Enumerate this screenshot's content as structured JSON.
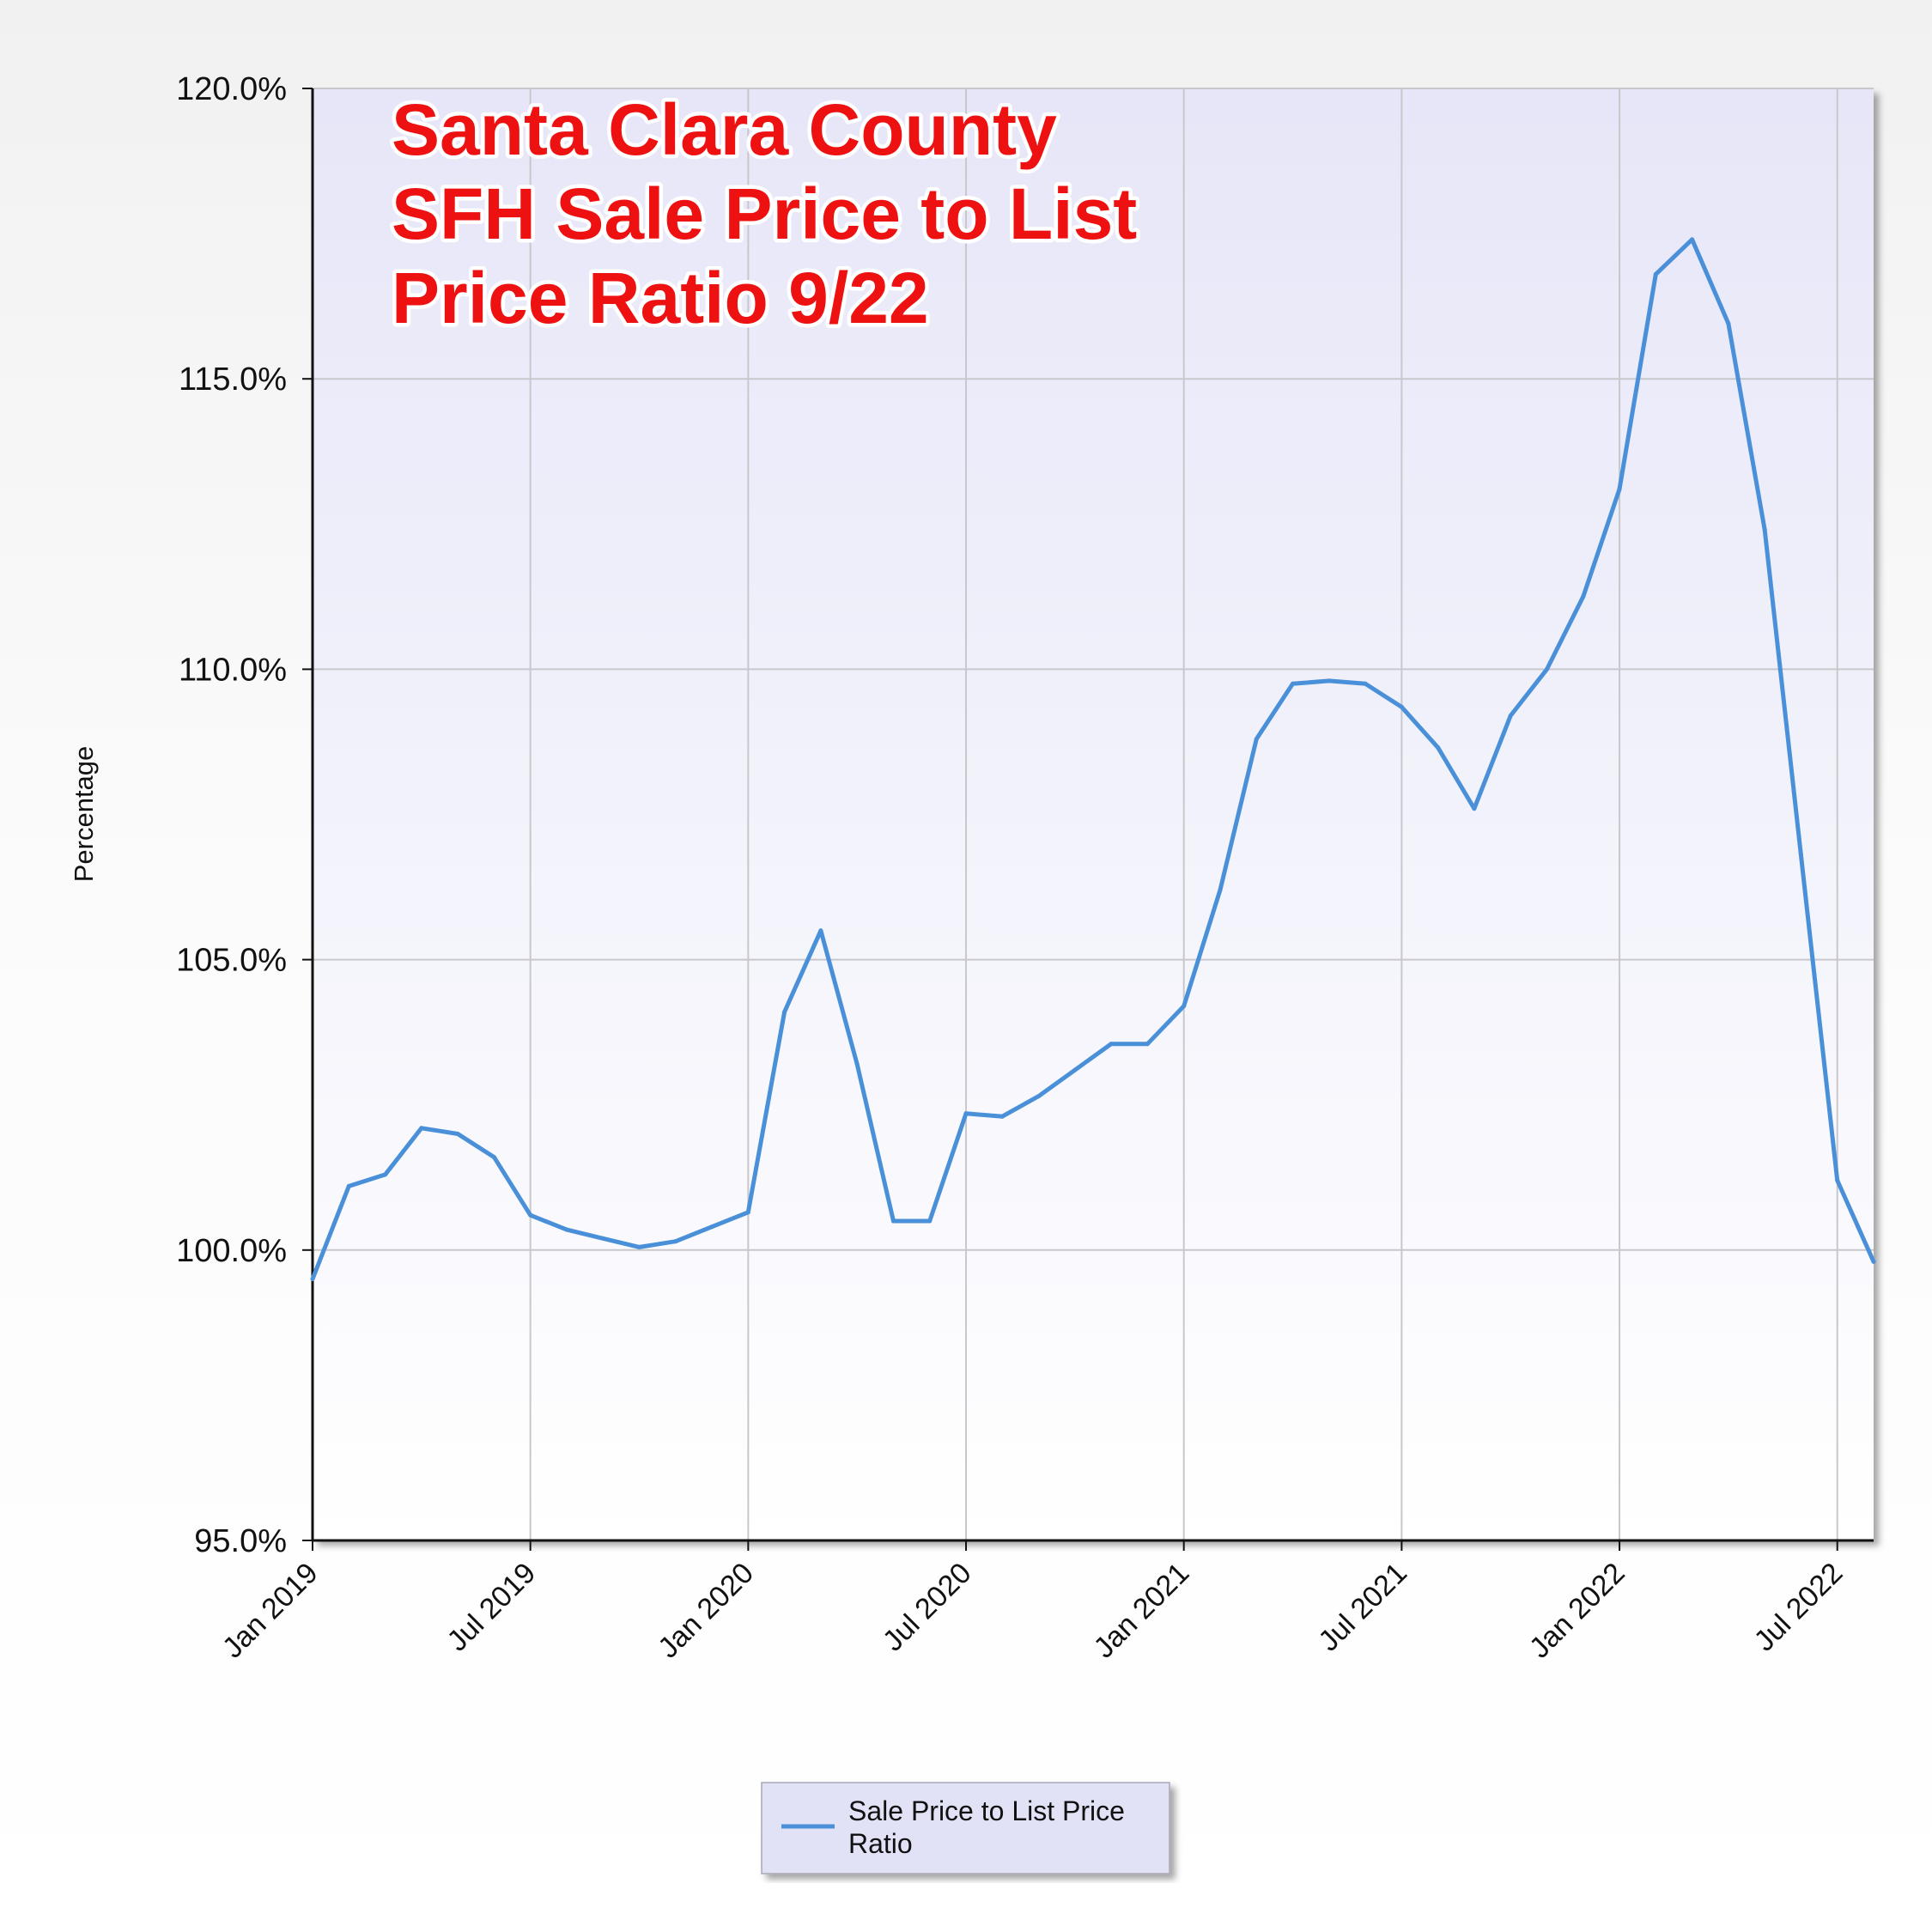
{
  "chart_data": {
    "type": "line",
    "annotation": [
      "Santa Clara County",
      "SFH Sale Price to List",
      "Price Ratio 9/22"
    ],
    "ylabel": "Percentage",
    "xlabel": "",
    "ylim": [
      95,
      120
    ],
    "yticks": [
      {
        "value": 95,
        "label": "95.0%"
      },
      {
        "value": 100,
        "label": "100.0%"
      },
      {
        "value": 105,
        "label": "105.0%"
      },
      {
        "value": 110,
        "label": "110.0%"
      },
      {
        "value": 115,
        "label": "115.0%"
      },
      {
        "value": 120,
        "label": "120.0%"
      }
    ],
    "xrange": [
      "2019-01",
      "2022-08"
    ],
    "xticks": [
      {
        "value": "2019-01",
        "label": "Jan 2019"
      },
      {
        "value": "2019-07",
        "label": "Jul 2019"
      },
      {
        "value": "2020-01",
        "label": "Jan 2020"
      },
      {
        "value": "2020-07",
        "label": "Jul 2020"
      },
      {
        "value": "2021-01",
        "label": "Jan 2021"
      },
      {
        "value": "2021-07",
        "label": "Jul 2021"
      },
      {
        "value": "2022-01",
        "label": "Jan 2022"
      },
      {
        "value": "2022-07",
        "label": "Jul 2022"
      }
    ],
    "grid": true,
    "legend_position": "bottom-center",
    "colors": {
      "line": "#4a90d9",
      "plot_top": "#e6e6f8",
      "plot_bottom": "#ffffff",
      "annotation": "#ee1111",
      "legend_bg": "#e2e2f6"
    },
    "series": [
      {
        "name": "Sale Price to List Price Ratio",
        "x": [
          "2019-01",
          "2019-02",
          "2019-03",
          "2019-04",
          "2019-05",
          "2019-06",
          "2019-07",
          "2019-08",
          "2019-09",
          "2019-10",
          "2019-11",
          "2019-12",
          "2020-01",
          "2020-02",
          "2020-03",
          "2020-04",
          "2020-05",
          "2020-06",
          "2020-07",
          "2020-08",
          "2020-09",
          "2020-10",
          "2020-11",
          "2020-12",
          "2021-01",
          "2021-02",
          "2021-03",
          "2021-04",
          "2021-05",
          "2021-06",
          "2021-07",
          "2021-08",
          "2021-09",
          "2021-10",
          "2021-11",
          "2021-12",
          "2022-01",
          "2022-02",
          "2022-03",
          "2022-04",
          "2022-05",
          "2022-06",
          "2022-07",
          "2022-08"
        ],
        "values": [
          99.5,
          101.1,
          101.3,
          102.1,
          102.0,
          101.6,
          100.6,
          100.35,
          100.2,
          100.05,
          100.15,
          100.4,
          100.65,
          104.1,
          105.5,
          103.2,
          100.5,
          100.5,
          102.35,
          102.3,
          102.65,
          103.1,
          103.55,
          103.55,
          104.2,
          106.2,
          108.8,
          109.75,
          109.8,
          109.75,
          109.35,
          108.65,
          107.6,
          109.2,
          110.0,
          111.25,
          113.1,
          116.8,
          117.4,
          115.95,
          112.4,
          106.8,
          101.2,
          99.8
        ]
      }
    ]
  }
}
